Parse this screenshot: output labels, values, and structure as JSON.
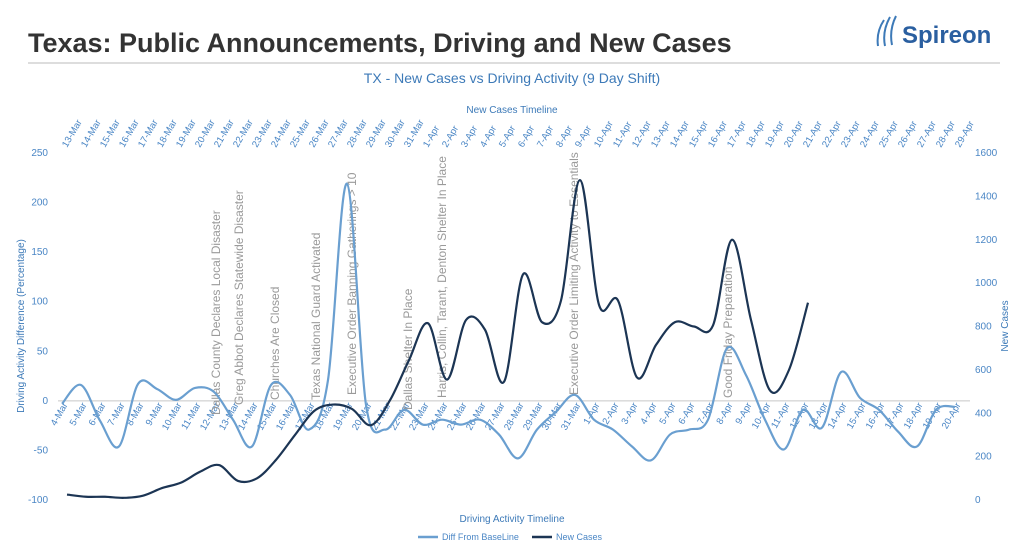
{
  "header": {
    "title": "Texas: Public Announcements, Driving and New Cases",
    "logo": "Spireon"
  },
  "chart_data": {
    "type": "line",
    "title": "TX - New Cases vs Driving Activity (9 Day Shift)",
    "top_axis_label": "New Cases Timeline",
    "x_label": "Driving  Activity Timeline",
    "y_label": "Driving  Activity Difference  (Percentage)",
    "y2_label": "New Cases",
    "top_categories": [
      "13-Mar",
      "14-Mar",
      "15-Mar",
      "16-Mar",
      "17-Mar",
      "18-Mar",
      "19-Mar",
      "20-Mar",
      "21-Mar",
      "22-Mar",
      "23-Mar",
      "24-Mar",
      "25-Mar",
      "26-Mar",
      "27-Mar",
      "28-Mar",
      "29-Mar",
      "30-Mar",
      "31-Mar",
      "1-Apr",
      "2-Apr",
      "3-Apr",
      "4-Apr",
      "5-Apr",
      "6-Apr",
      "7-Apr",
      "8-Apr",
      "9-Apr",
      "10-Apr",
      "11-Apr",
      "12-Apr",
      "13-Apr",
      "14-Apr",
      "15-Apr",
      "16-Apr",
      "17-Apr",
      "18-Apr",
      "19-Apr",
      "20-Apr",
      "21-Apr",
      "22-Apr",
      "23-Apr",
      "24-Apr",
      "25-Apr",
      "26-Apr",
      "27-Apr",
      "28-Apr",
      "29-Apr"
    ],
    "categories": [
      "4-Mar",
      "5-Mar",
      "6-Mar",
      "7-Mar",
      "8-Mar",
      "9-Mar",
      "10-Mar",
      "11-Mar",
      "12-Mar",
      "13-Mar",
      "14-Mar",
      "15-Mar",
      "16-Mar",
      "17-Mar",
      "18-Mar",
      "19-Mar",
      "20-Mar",
      "21-Mar",
      "22-Mar",
      "23-Mar",
      "24-Mar",
      "25-Mar",
      "26-Mar",
      "27-Mar",
      "28-Mar",
      "29-Mar",
      "30-Mar",
      "31-Mar",
      "1-Apr",
      "2-Apr",
      "3-Apr",
      "4-Apr",
      "5-Apr",
      "6-Apr",
      "7-Apr",
      "8-Apr",
      "9-Apr",
      "10-Apr",
      "11-Apr",
      "12-Apr",
      "13-Apr",
      "14-Apr",
      "15-Apr",
      "16-Apr",
      "17-Apr",
      "18-Apr",
      "19-Apr",
      "20-Apr"
    ],
    "series": [
      {
        "name": "Diff From BaseLine",
        "color": "#6a9fd0",
        "values": [
          -3,
          16,
          -20,
          -46,
          17,
          12,
          1,
          13,
          9,
          -19,
          -46,
          16,
          6,
          -29,
          21,
          219,
          -4,
          -29,
          -9,
          -24,
          -19,
          -24,
          -19,
          -34,
          -58,
          -29,
          -11,
          6,
          -19,
          -29,
          -46,
          -60,
          -34,
          -29,
          -19,
          53,
          26,
          -19,
          -49,
          -9,
          -27,
          29,
          3,
          -9,
          -31,
          -46,
          -9,
          -6
        ]
      },
      {
        "name": "New Cases",
        "color": "#1c3554",
        "axis": "y2",
        "values": [
          25,
          15,
          15,
          10,
          20,
          55,
          80,
          130,
          161,
          88,
          100,
          185,
          300,
          410,
          440,
          420,
          345,
          460,
          645,
          815,
          555,
          830,
          785,
          545,
          1040,
          820,
          920,
          1475,
          900,
          920,
          565,
          715,
          820,
          800,
          805,
          1200,
          830,
          505,
          600,
          910,
          null,
          null,
          null,
          null,
          null,
          null,
          null,
          null
        ]
      }
    ],
    "annotations": [
      "Dallas County Declares Local Disaster",
      "Greg Abbot Declares Statewide Disaster",
      "Churches Are Closed",
      "Texas National  Guard Activated",
      "Executive Order Banning Gatherings > 10",
      "Dallas Shelter In Place",
      "Harris, Collin, Tarant, Denton Shelter In Place",
      "Executive Order Limiting Activity to Essentials",
      "Good Friday Preparation"
    ],
    "ylim": [
      -100,
      250
    ],
    "yticks": [
      -100,
      -50,
      0,
      50,
      100,
      150,
      200,
      250
    ],
    "y2lim": [
      0,
      1600
    ],
    "y2ticks": [
      0,
      200,
      400,
      600,
      800,
      1000,
      1200,
      1400,
      1600
    ],
    "grid": false
  }
}
